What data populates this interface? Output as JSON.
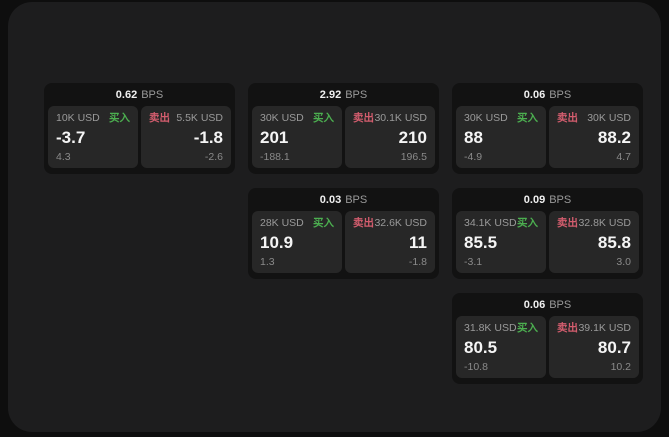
{
  "labels": {
    "bps_unit": "BPS",
    "buy": "买入",
    "sell": "卖出"
  },
  "colors": {
    "buy_green": "#4caf50",
    "sell_pink": "#d35d6e",
    "panel_bg": "#1d1d1e",
    "card_bg": "#121212",
    "subcard_bg": "#272727",
    "value_white": "#f5f5f5",
    "muted_gray": "#9a9a9a"
  },
  "cards": [
    {
      "bps": "0.62",
      "buy": {
        "amount": "10K USD",
        "value": "-3.7",
        "delta": "4.3"
      },
      "sell": {
        "amount": "5.5K USD",
        "value": "-1.8",
        "delta": "-2.6"
      }
    },
    {
      "bps": "2.92",
      "buy": {
        "amount": "30K USD",
        "value": "201",
        "delta": "-188.1"
      },
      "sell": {
        "amount": "30.1K USD",
        "value": "210",
        "delta": "196.5"
      }
    },
    {
      "bps": "0.06",
      "buy": {
        "amount": "30K USD",
        "value": "88",
        "delta": "-4.9"
      },
      "sell": {
        "amount": "30K USD",
        "value": "88.2",
        "delta": "4.7"
      }
    },
    {
      "bps": "0.03",
      "buy": {
        "amount": "28K USD",
        "value": "10.9",
        "delta": "1.3"
      },
      "sell": {
        "amount": "32.6K USD",
        "value": "11",
        "delta": "-1.8"
      }
    },
    {
      "bps": "0.09",
      "buy": {
        "amount": "34.1K USD",
        "value": "85.5",
        "delta": "-3.1"
      },
      "sell": {
        "amount": "32.8K USD",
        "value": "85.8",
        "delta": "3.0"
      }
    },
    {
      "bps": "0.06",
      "buy": {
        "amount": "31.8K USD",
        "value": "80.5",
        "delta": "-10.8"
      },
      "sell": {
        "amount": "39.1K USD",
        "value": "80.7",
        "delta": "10.2"
      }
    }
  ]
}
